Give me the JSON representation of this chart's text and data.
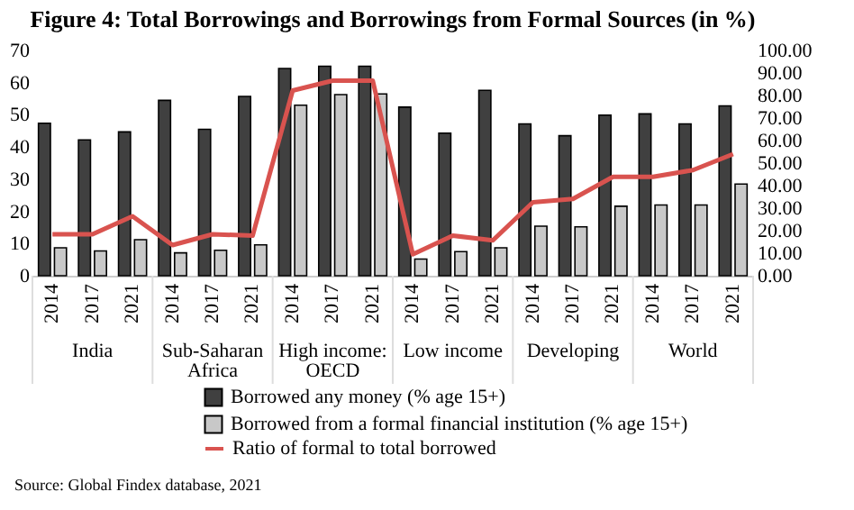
{
  "chart_data": {
    "type": "bar",
    "title": "Figure 4: Total Borrowings and Borrowings from Formal Sources (in %)",
    "categories": [
      "2014",
      "2017",
      "2021",
      "2014",
      "2017",
      "2021",
      "2014",
      "2017",
      "2021",
      "2014",
      "2017",
      "2021",
      "2014",
      "2017",
      "2021",
      "2014",
      "2017",
      "2021"
    ],
    "series": [
      {
        "name": "Borrowed any money (% age 15+)",
        "color": "#404040",
        "values": [
          47.4,
          42.2,
          44.7,
          54.5,
          45.5,
          55.7,
          64.4,
          65.1,
          65.1,
          52.4,
          44.3,
          57.6,
          47.2,
          43.5,
          49.9,
          50.3,
          47.2,
          52.8
        ]
      },
      {
        "name": "Borrowed from a formal financial institution (% age 15+)",
        "color": "#c8c8c8",
        "values": [
          8.7,
          7.7,
          11.2,
          7.1,
          7.9,
          9.6,
          53,
          56.3,
          56.5,
          5.2,
          7.5,
          8.7,
          15.4,
          15.2,
          21.6,
          22,
          22,
          28.5
        ]
      },
      {
        "name": "Ratio of formal to total borrowed",
        "type": "line",
        "axis": "y2",
        "color": "#d9534f",
        "values": [
          18.4,
          18.4,
          26.4,
          13.6,
          18.4,
          17.8,
          82.2,
          86.6,
          86.6,
          9.5,
          17.8,
          15.7,
          32.6,
          34.1,
          43.9,
          43.9,
          46.9,
          54.0
        ]
      }
    ],
    "ylim": [
      0,
      70
    ],
    "yticks": [
      0,
      10,
      20,
      30,
      40,
      50,
      60,
      70
    ],
    "y2lim": [
      0,
      100
    ],
    "y2ticks": [
      {
        "value": 0,
        "label": "0.00"
      },
      {
        "value": 10,
        "label": "10.00"
      },
      {
        "value": 20,
        "label": "20.00"
      },
      {
        "value": 30,
        "label": "30.00"
      },
      {
        "value": 40,
        "label": "40.00"
      },
      {
        "value": 50,
        "label": "50.00"
      },
      {
        "value": 60,
        "label": "60.00"
      },
      {
        "value": 70,
        "label": "70.00"
      },
      {
        "value": 80,
        "label": "80.00"
      },
      {
        "value": 90,
        "label": "90.00"
      },
      {
        "value": 100,
        "label": "100.00"
      }
    ],
    "annotations": [
      "India",
      "Sub-Saharan Africa",
      "High income: OECD",
      "Low income",
      "Developing",
      "World",
      "Source: Global Findex database, 2021"
    ],
    "grid": false,
    "legend": "bottom"
  }
}
